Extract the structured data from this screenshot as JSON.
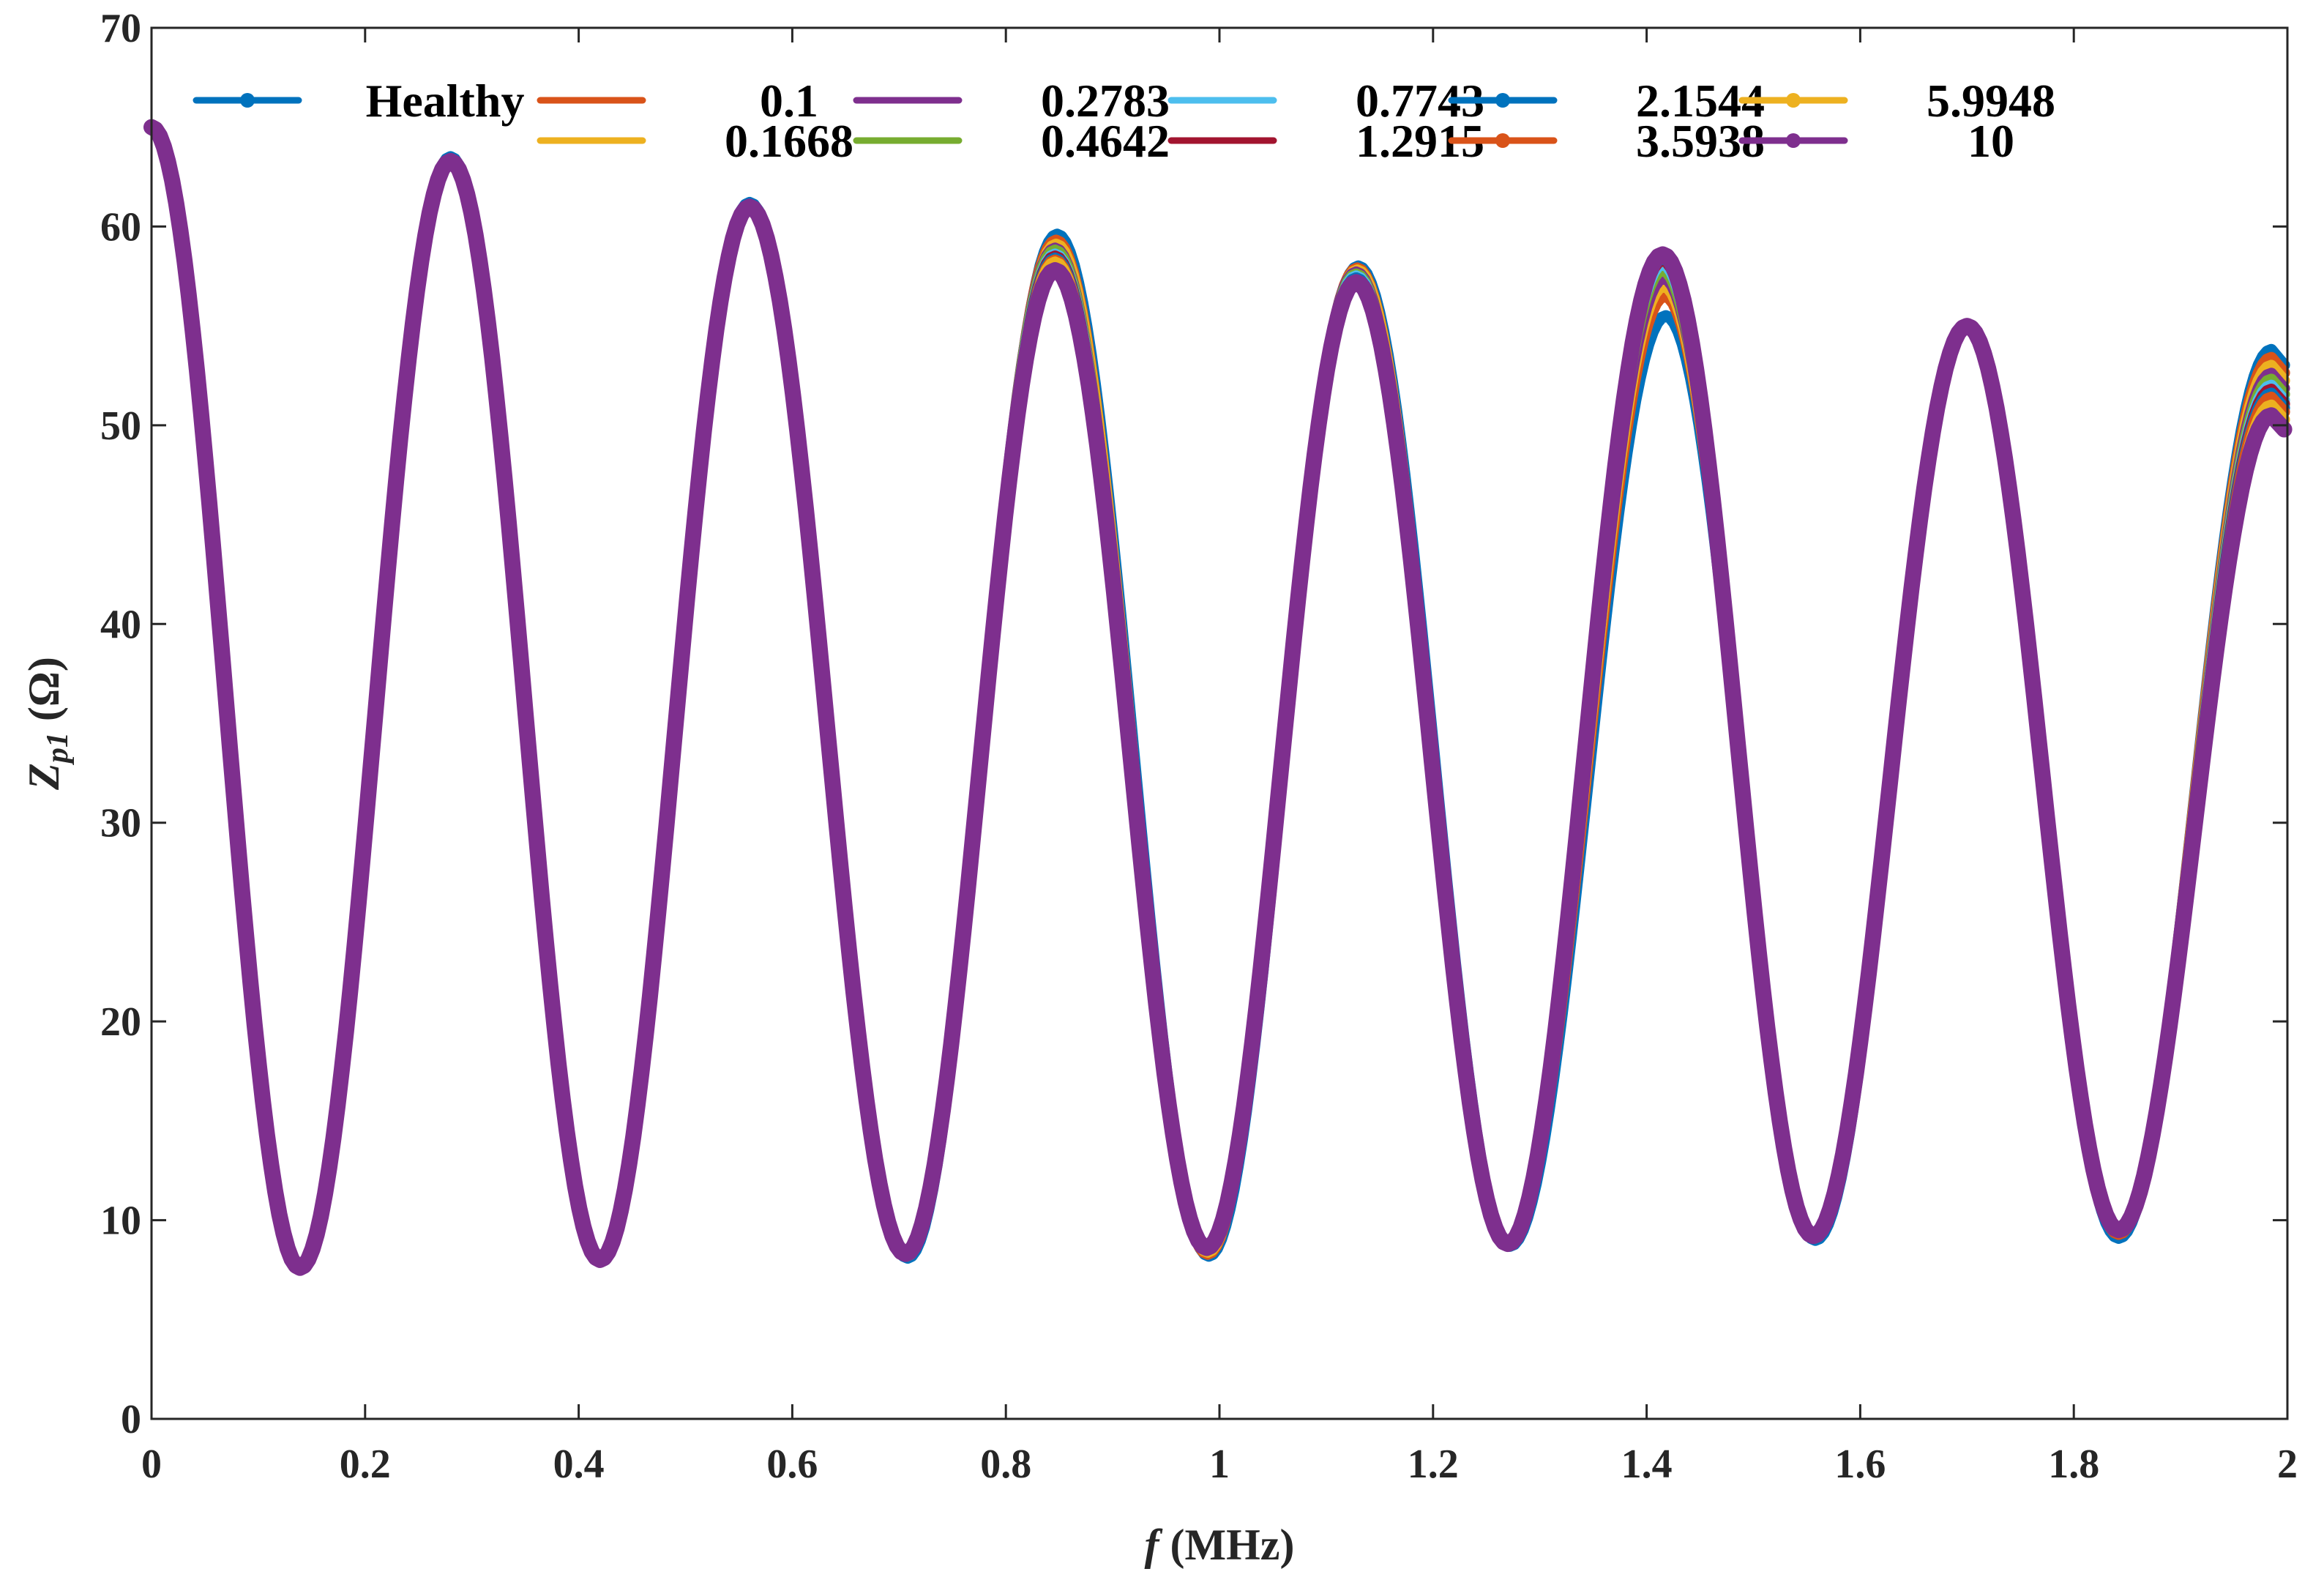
{
  "chart_data": {
    "type": "line",
    "x_unit_label": "f",
    "x_unit_suffix": " (MHz)",
    "y_label_main": "Z",
    "y_label_sub": "p1",
    "y_label_suffix": " (Ω)",
    "xlim": [
      0,
      2
    ],
    "ylim": [
      0,
      70
    ],
    "x_ticks": [
      0,
      0.2,
      0.4,
      0.6,
      0.8,
      1,
      1.2,
      1.4,
      1.6,
      1.8,
      2
    ],
    "x_tick_labels": [
      "0",
      "0.2",
      "0.4",
      "0.6",
      "0.8",
      "1",
      "1.2",
      "1.4",
      "1.6",
      "1.8",
      "2"
    ],
    "y_ticks": [
      0,
      10,
      20,
      30,
      40,
      50,
      60,
      70
    ],
    "y_tick_labels": [
      "0",
      "10",
      "20",
      "30",
      "40",
      "50",
      "60",
      "70"
    ],
    "grid": false,
    "box": true,
    "legend": {
      "placement": "top",
      "columns": 6
    },
    "extrema_note": "peak/valley values (MHz, Ohm) for each series",
    "series": [
      {
        "name": "Healthy",
        "color": "#0072BD",
        "marker": true,
        "peaks": [
          [
            0,
            65
          ],
          [
            0.28,
            63.5
          ],
          [
            0.56,
            61.2
          ],
          [
            0.848,
            59.6
          ],
          [
            1.13,
            58
          ],
          [
            1.418,
            55.5
          ],
          [
            1.7,
            55
          ],
          [
            1.985,
            53.8
          ]
        ],
        "valleys": [
          [
            0.14,
            7.6
          ],
          [
            0.42,
            8
          ],
          [
            0.708,
            8.1
          ],
          [
            0.99,
            8.2
          ],
          [
            1.272,
            8.7
          ],
          [
            1.558,
            9
          ],
          [
            1.842,
            9.1
          ]
        ]
      },
      {
        "name": "0.1",
        "color": "#D95319",
        "marker": false,
        "peaks": [
          [
            0,
            65
          ],
          [
            0.28,
            63.4
          ],
          [
            0.56,
            61.1
          ],
          [
            0.847,
            59.3
          ],
          [
            1.129,
            57.9
          ],
          [
            1.417,
            56.5
          ],
          [
            1.7,
            55
          ],
          [
            1.985,
            53.4
          ]
        ],
        "valleys": [
          [
            0.139,
            7.6
          ],
          [
            0.42,
            8
          ],
          [
            0.707,
            8.2
          ],
          [
            0.989,
            8.3
          ],
          [
            1.271,
            8.8
          ],
          [
            1.557,
            9.1
          ],
          [
            1.842,
            9.3
          ]
        ]
      },
      {
        "name": "0.1668",
        "color": "#EDB120",
        "marker": false,
        "peaks": [
          [
            0,
            65
          ],
          [
            0.28,
            63.3
          ],
          [
            0.56,
            61.1
          ],
          [
            0.847,
            59.1
          ],
          [
            1.129,
            57.8
          ],
          [
            1.416,
            57
          ],
          [
            1.7,
            55
          ],
          [
            1.985,
            53
          ]
        ],
        "valleys": [
          [
            0.139,
            7.6
          ],
          [
            0.42,
            8
          ],
          [
            0.707,
            8.2
          ],
          [
            0.989,
            8.4
          ],
          [
            1.271,
            8.8
          ],
          [
            1.557,
            9.2
          ],
          [
            1.842,
            9.4
          ]
        ]
      },
      {
        "name": "0.2783",
        "color": "#7E2F8E",
        "marker": false,
        "peaks": [
          [
            0,
            65
          ],
          [
            0.28,
            63.3
          ],
          [
            0.56,
            61.1
          ],
          [
            0.846,
            58.9
          ],
          [
            1.128,
            57.7
          ],
          [
            1.416,
            57.4
          ],
          [
            1.7,
            55
          ],
          [
            1.985,
            52.6
          ]
        ],
        "valleys": [
          [
            0.139,
            7.6
          ],
          [
            0.42,
            8
          ],
          [
            0.706,
            8.3
          ],
          [
            0.988,
            8.5
          ],
          [
            1.27,
            8.8
          ],
          [
            1.556,
            9.2
          ],
          [
            1.842,
            9.5
          ]
        ]
      },
      {
        "name": "0.4642",
        "color": "#77AC30",
        "marker": false,
        "peaks": [
          [
            0,
            65
          ],
          [
            0.28,
            63.3
          ],
          [
            0.56,
            61.1
          ],
          [
            0.846,
            58.8
          ],
          [
            1.128,
            57.6
          ],
          [
            1.415,
            57.8
          ],
          [
            1.7,
            55
          ],
          [
            1.985,
            52.3
          ]
        ],
        "valleys": [
          [
            0.139,
            7.6
          ],
          [
            0.42,
            8
          ],
          [
            0.706,
            8.3
          ],
          [
            0.988,
            8.5
          ],
          [
            1.27,
            8.8
          ],
          [
            1.556,
            9.2
          ],
          [
            1.842,
            9.5
          ]
        ]
      },
      {
        "name": "0.7743",
        "color": "#4DBEEE",
        "marker": false,
        "peaks": [
          [
            0,
            65
          ],
          [
            0.28,
            63.3
          ],
          [
            0.56,
            61
          ],
          [
            0.846,
            58.6
          ],
          [
            1.128,
            57.5
          ],
          [
            1.415,
            58.1
          ],
          [
            1.7,
            55
          ],
          [
            1.985,
            52
          ]
        ],
        "valleys": [
          [
            0.139,
            7.6
          ],
          [
            0.42,
            8
          ],
          [
            0.706,
            8.3
          ],
          [
            0.988,
            8.6
          ],
          [
            1.27,
            8.8
          ],
          [
            1.556,
            9.2
          ],
          [
            1.842,
            9.5
          ]
        ]
      },
      {
        "name": "1.2915",
        "color": "#A2142F",
        "marker": false,
        "peaks": [
          [
            0,
            65
          ],
          [
            0.28,
            63.3
          ],
          [
            0.56,
            61
          ],
          [
            0.846,
            58.5
          ],
          [
            1.128,
            57.4
          ],
          [
            1.415,
            58.3
          ],
          [
            1.7,
            55
          ],
          [
            1.985,
            51.8
          ]
        ],
        "valleys": [
          [
            0.139,
            7.6
          ],
          [
            0.42,
            8
          ],
          [
            0.706,
            8.3
          ],
          [
            0.988,
            8.6
          ],
          [
            1.27,
            8.8
          ],
          [
            1.556,
            9.2
          ],
          [
            1.842,
            9.5
          ]
        ]
      },
      {
        "name": "2.1544",
        "color": "#0072BD",
        "marker": true,
        "peaks": [
          [
            0,
            65
          ],
          [
            0.28,
            63.3
          ],
          [
            0.56,
            61
          ],
          [
            0.846,
            58.4
          ],
          [
            1.128,
            57.4
          ],
          [
            1.415,
            58.4
          ],
          [
            1.7,
            55
          ],
          [
            1.985,
            51.6
          ]
        ],
        "valleys": [
          [
            0.139,
            7.6
          ],
          [
            0.42,
            8
          ],
          [
            0.706,
            8.3
          ],
          [
            0.988,
            8.6
          ],
          [
            1.27,
            8.8
          ],
          [
            1.556,
            9.2
          ],
          [
            1.842,
            9.5
          ]
        ]
      },
      {
        "name": "3.5938",
        "color": "#D95319",
        "marker": true,
        "peaks": [
          [
            0,
            65
          ],
          [
            0.28,
            63.3
          ],
          [
            0.56,
            61
          ],
          [
            0.846,
            58.3
          ],
          [
            1.128,
            57.3
          ],
          [
            1.415,
            58.5
          ],
          [
            1.7,
            55
          ],
          [
            1.985,
            51.4
          ]
        ],
        "valleys": [
          [
            0.139,
            7.6
          ],
          [
            0.42,
            8
          ],
          [
            0.706,
            8.3
          ],
          [
            0.988,
            8.6
          ],
          [
            1.27,
            8.8
          ],
          [
            1.556,
            9.2
          ],
          [
            1.842,
            9.5
          ]
        ]
      },
      {
        "name": "5.9948",
        "color": "#EDB120",
        "marker": true,
        "peaks": [
          [
            0,
            65
          ],
          [
            0.28,
            63.3
          ],
          [
            0.56,
            61
          ],
          [
            0.846,
            58.2
          ],
          [
            1.128,
            57.3
          ],
          [
            1.415,
            58.6
          ],
          [
            1.7,
            55
          ],
          [
            1.985,
            51
          ]
        ],
        "valleys": [
          [
            0.139,
            7.6
          ],
          [
            0.42,
            8
          ],
          [
            0.706,
            8.3
          ],
          [
            0.988,
            8.6
          ],
          [
            1.27,
            8.8
          ],
          [
            1.556,
            9.2
          ],
          [
            1.842,
            9.5
          ]
        ]
      },
      {
        "name": "10",
        "color": "#7E2F8E",
        "marker": true,
        "peaks": [
          [
            0,
            65
          ],
          [
            0.28,
            63.3
          ],
          [
            0.56,
            61
          ],
          [
            0.846,
            57.8
          ],
          [
            1.128,
            57.2
          ],
          [
            1.415,
            58.6
          ],
          [
            1.7,
            55
          ],
          [
            1.985,
            50.5
          ]
        ],
        "valleys": [
          [
            0.139,
            7.6
          ],
          [
            0.42,
            8
          ],
          [
            0.706,
            8.3
          ],
          [
            0.988,
            8.6
          ],
          [
            1.27,
            8.8
          ],
          [
            1.556,
            9.2
          ],
          [
            1.842,
            9.5
          ]
        ]
      }
    ]
  }
}
